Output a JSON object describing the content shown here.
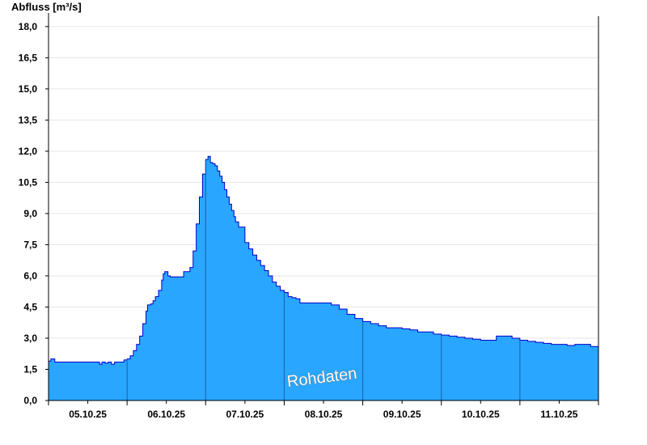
{
  "chart_data": {
    "type": "area",
    "title": "",
    "ylabel": "Abfluss [m³/s]",
    "xlabel": "",
    "ylim": [
      0,
      18.5
    ],
    "y_ticks": [
      "0,0",
      "1,5",
      "3,0",
      "4,5",
      "6,0",
      "7,5",
      "9,0",
      "10,5",
      "12,0",
      "13,5",
      "15,0",
      "16,5",
      "18,0"
    ],
    "x_tick_labels": [
      "05.10.25",
      "06.10.25",
      "07.10.25",
      "08.10.25",
      "09.10.25",
      "10.10.25",
      "11.10.25"
    ],
    "grid": true,
    "watermark": "Rohdaten",
    "colors": {
      "fill": "#29a6ff",
      "line": "#0000cc",
      "divider": "#1c5fa8",
      "grid": "#e6e6e6"
    },
    "x_unit": "days from 05.10.25 00:00",
    "x": [
      0,
      0.03,
      0.08,
      0.2,
      0.4,
      0.6,
      0.65,
      0.68,
      0.72,
      0.76,
      0.8,
      0.84,
      0.9,
      0.93,
      0.96,
      1.0,
      1.04,
      1.08,
      1.12,
      1.16,
      1.2,
      1.24,
      1.26,
      1.3,
      1.33,
      1.36,
      1.4,
      1.44,
      1.46,
      1.48,
      1.5,
      1.52,
      1.55,
      1.58,
      1.6,
      1.64,
      1.68,
      1.72,
      1.76,
      1.8,
      1.84,
      1.88,
      1.92,
      1.96,
      2.0,
      2.03,
      2.06,
      2.09,
      2.12,
      2.15,
      2.18,
      2.21,
      2.24,
      2.27,
      2.3,
      2.33,
      2.36,
      2.38,
      2.42,
      2.5,
      2.55,
      2.6,
      2.65,
      2.7,
      2.75,
      2.8,
      2.85,
      2.9,
      2.95,
      3.0,
      3.05,
      3.1,
      3.15,
      3.2,
      3.3,
      3.4,
      3.5,
      3.6,
      3.7,
      3.8,
      3.9,
      4.0,
      4.1,
      4.2,
      4.3,
      4.4,
      4.5,
      4.6,
      4.7,
      4.8,
      4.9,
      5.0,
      5.1,
      5.2,
      5.3,
      5.4,
      5.5,
      5.6,
      5.7,
      5.8,
      5.9,
      6.0,
      6.1,
      6.2,
      6.3,
      6.4,
      6.5,
      6.6,
      6.7,
      6.8,
      6.9,
      7.0
    ],
    "values": [
      1.9,
      2.0,
      1.85,
      1.85,
      1.85,
      1.85,
      1.75,
      1.85,
      1.8,
      1.85,
      1.75,
      1.85,
      1.85,
      1.85,
      1.95,
      2.0,
      2.15,
      2.4,
      2.7,
      3.1,
      3.7,
      4.3,
      4.6,
      4.65,
      4.8,
      5.0,
      5.3,
      5.8,
      6.1,
      6.2,
      6.2,
      6.0,
      5.95,
      5.95,
      5.95,
      5.95,
      5.95,
      6.2,
      6.2,
      6.4,
      7.2,
      8.5,
      9.8,
      10.9,
      11.6,
      11.75,
      11.45,
      11.4,
      11.3,
      11.05,
      10.8,
      10.5,
      10.15,
      9.8,
      9.45,
      9.15,
      8.85,
      8.6,
      8.35,
      7.6,
      7.3,
      7.0,
      6.75,
      6.5,
      6.25,
      6.0,
      5.7,
      5.5,
      5.3,
      5.2,
      5.0,
      4.95,
      4.9,
      4.7,
      4.7,
      4.7,
      4.7,
      4.6,
      4.4,
      4.15,
      3.95,
      3.8,
      3.7,
      3.6,
      3.5,
      3.5,
      3.45,
      3.4,
      3.3,
      3.3,
      3.2,
      3.15,
      3.1,
      3.05,
      3.0,
      2.95,
      2.9,
      2.9,
      3.1,
      3.1,
      3.0,
      2.9,
      2.85,
      2.8,
      2.75,
      2.7,
      2.7,
      2.65,
      2.7,
      2.7,
      2.6,
      2.55
    ]
  }
}
